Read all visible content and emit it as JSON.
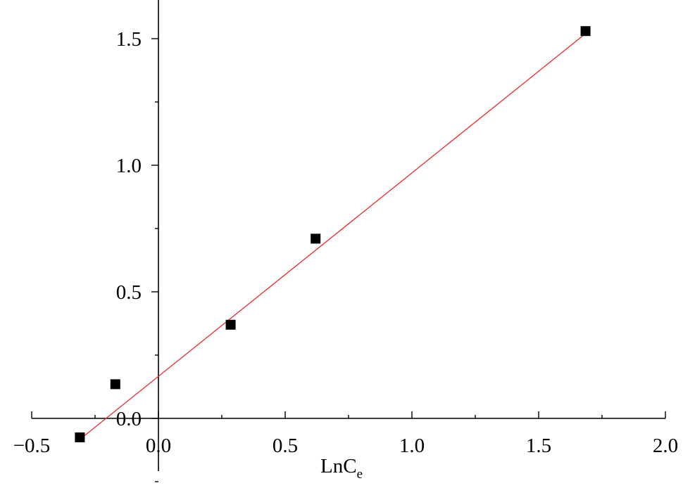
{
  "chart_data": {
    "type": "scatter",
    "title": "",
    "xlabel": "LnC",
    "xlabel_sub": "e",
    "ylabel": "",
    "xlim": [
      -0.5,
      2.0
    ],
    "ylim": [
      -0.3,
      1.7
    ],
    "x_ticks": [
      -0.5,
      0.0,
      0.5,
      1.0,
      1.5,
      2.0
    ],
    "x_tick_labels": [
      "−0.5",
      "0.0",
      "0.5",
      "1.0",
      "1.5",
      "2.0"
    ],
    "y_ticks": [
      0.0,
      0.5,
      1.0,
      1.5
    ],
    "y_tick_labels": [
      "0.0",
      "0.5",
      "1.0",
      "1.5"
    ],
    "grid": false,
    "series": [
      {
        "marker": "square",
        "color": "#000000",
        "x": [
          -0.31,
          -0.17,
          0.285,
          0.62,
          1.685
        ],
        "y": [
          -0.075,
          0.135,
          0.37,
          0.71,
          1.53
        ]
      }
    ],
    "fit_line": {
      "color": "#e8292e",
      "x": [
        -0.31,
        1.685
      ],
      "y": [
        -0.083,
        1.52
      ]
    }
  }
}
